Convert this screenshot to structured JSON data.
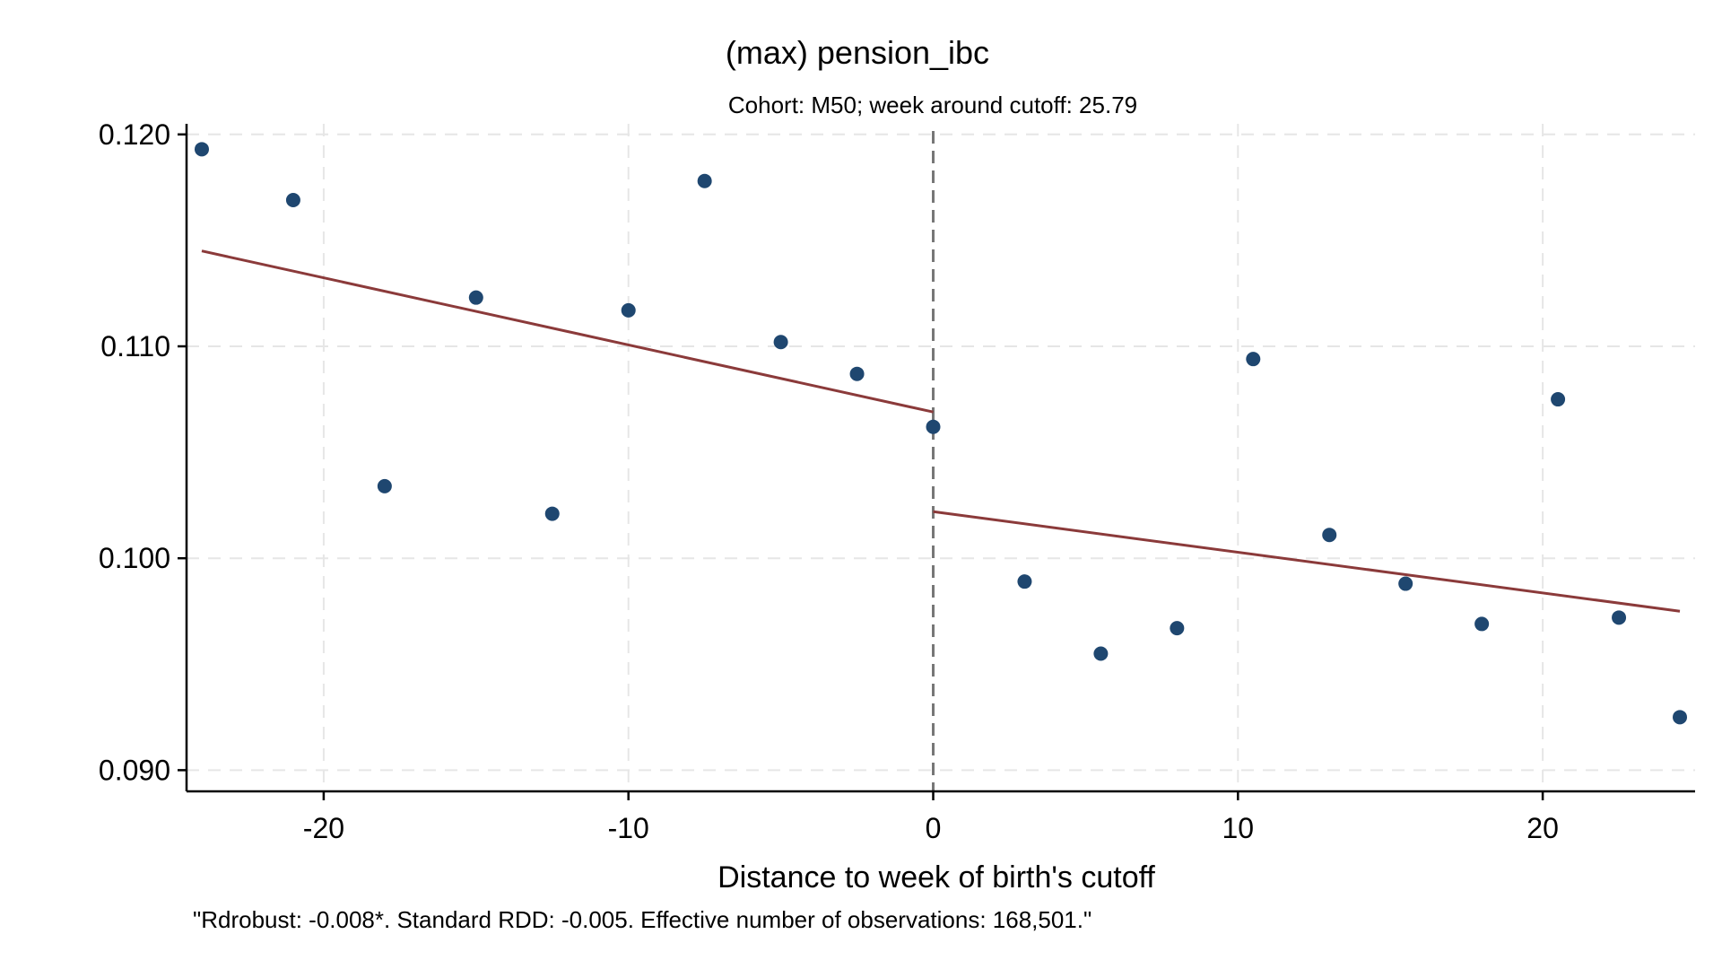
{
  "chart_data": {
    "type": "scatter",
    "title": "(max) pension_ibc",
    "subtitle": "Cohort: M50; week around cutoff:   25.79",
    "xlabel": "Distance to week of birth's cutoff",
    "ylabel": "",
    "note": "\"Rdrobust: -0.008*. Standard RDD: -0.005. Effective number of observations: 168,501.\"",
    "xlim": [
      -24.5,
      25
    ],
    "ylim": [
      0.089,
      0.1205
    ],
    "xticks": [
      -20,
      -10,
      0,
      10,
      20
    ],
    "xtick_labels": [
      "-20",
      "-10",
      "0",
      "10",
      "20"
    ],
    "yticks": [
      0.09,
      0.1,
      0.11,
      0.12
    ],
    "ytick_labels": [
      "0.090",
      "0.100",
      "0.110",
      "0.120"
    ],
    "grid": true,
    "cutoff_x": 0,
    "colors": {
      "points": "#1f4770",
      "fit_line": "#8b3a3a",
      "cutoff_line": "#777777",
      "grid": "#e6e6e6"
    },
    "points": [
      {
        "x": -24.0,
        "y": 0.1193
      },
      {
        "x": -21.0,
        "y": 0.1169
      },
      {
        "x": -18.0,
        "y": 0.1034
      },
      {
        "x": -15.0,
        "y": 0.1123
      },
      {
        "x": -12.5,
        "y": 0.1021
      },
      {
        "x": -10.0,
        "y": 0.1117
      },
      {
        "x": -7.5,
        "y": 0.1178
      },
      {
        "x": -5.0,
        "y": 0.1102
      },
      {
        "x": -2.5,
        "y": 0.1087
      },
      {
        "x": 0.0,
        "y": 0.1062
      },
      {
        "x": 3.0,
        "y": 0.0989
      },
      {
        "x": 5.5,
        "y": 0.0955
      },
      {
        "x": 8.0,
        "y": 0.0967
      },
      {
        "x": 10.5,
        "y": 0.1094
      },
      {
        "x": 13.0,
        "y": 0.1011
      },
      {
        "x": 15.5,
        "y": 0.0988
      },
      {
        "x": 18.0,
        "y": 0.0969
      },
      {
        "x": 20.5,
        "y": 0.1075
      },
      {
        "x": 22.5,
        "y": 0.0972
      },
      {
        "x": 24.5,
        "y": 0.0925
      }
    ],
    "fit_lines": [
      {
        "x": [
          -24.0,
          0.0
        ],
        "y": [
          0.1145,
          0.1069
        ]
      },
      {
        "x": [
          0.0,
          24.5
        ],
        "y": [
          0.1022,
          0.0975
        ]
      }
    ]
  }
}
